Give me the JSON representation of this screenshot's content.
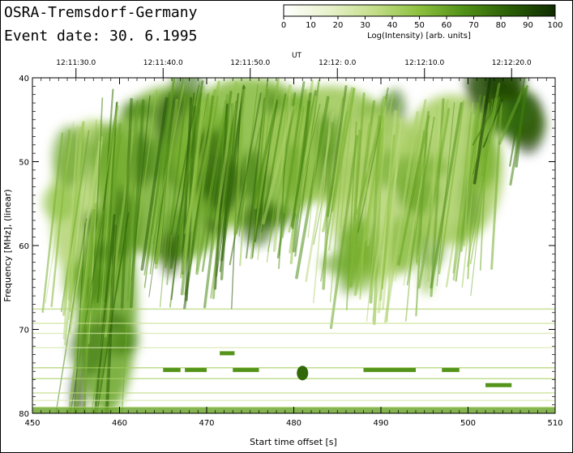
{
  "header": {
    "observatory": "OSRA-Tremsdorf-Germany",
    "event_date": "Event date: 30. 6.1995"
  },
  "colorbar": {
    "label": "Log(Intensity) [arb. units]",
    "ticks": [
      "0",
      "10",
      "20",
      "30",
      "40",
      "50",
      "60",
      "70",
      "80",
      "90",
      "100"
    ],
    "colors": [
      "#ffffff",
      "#e8f2cc",
      "#c4de8a",
      "#8cbf3e",
      "#4f8f16",
      "#2a5e06",
      "#0f2b00"
    ]
  },
  "chart_data": {
    "type": "heatmap",
    "title": "",
    "xlabel": "Start time offset [s]",
    "ylabel": "Frequency [MHz], (linear)",
    "top_axis_label": "UT",
    "xlim": [
      450,
      510
    ],
    "ylim": [
      80,
      40
    ],
    "x_ticks": [
      "450",
      "460",
      "470",
      "480",
      "490",
      "500",
      "510"
    ],
    "y_ticks": [
      "40",
      "50",
      "60",
      "70",
      "80"
    ],
    "ut_ticks": [
      "12:11:30.0",
      "12:11:40.0",
      "12:11:50.0",
      "12:12: 0.0",
      "12:12:10.0",
      "12:12:20.0"
    ],
    "ut_tick_offsets": [
      455,
      465,
      475,
      485,
      495,
      505
    ],
    "bursts": [
      {
        "x0": 452,
        "x1": 462,
        "y0": 45,
        "y1": 66,
        "intensity": 55
      },
      {
        "x0": 458,
        "x1": 474,
        "y0": 41,
        "y1": 62,
        "intensity": 80
      },
      {
        "x0": 466,
        "x1": 484,
        "y0": 40,
        "y1": 58,
        "intensity": 75
      },
      {
        "x0": 476,
        "x1": 492,
        "y0": 41,
        "y1": 55,
        "intensity": 65
      },
      {
        "x0": 484,
        "x1": 496,
        "y0": 44,
        "y1": 64,
        "intensity": 55
      },
      {
        "x0": 492,
        "x1": 504,
        "y0": 42,
        "y1": 60,
        "intensity": 60
      },
      {
        "x0": 502,
        "x1": 507,
        "y0": 40,
        "y1": 47,
        "intensity": 90
      },
      {
        "x0": 455,
        "x1": 462,
        "y0": 55,
        "y1": 80,
        "intensity": 85
      }
    ]
  }
}
